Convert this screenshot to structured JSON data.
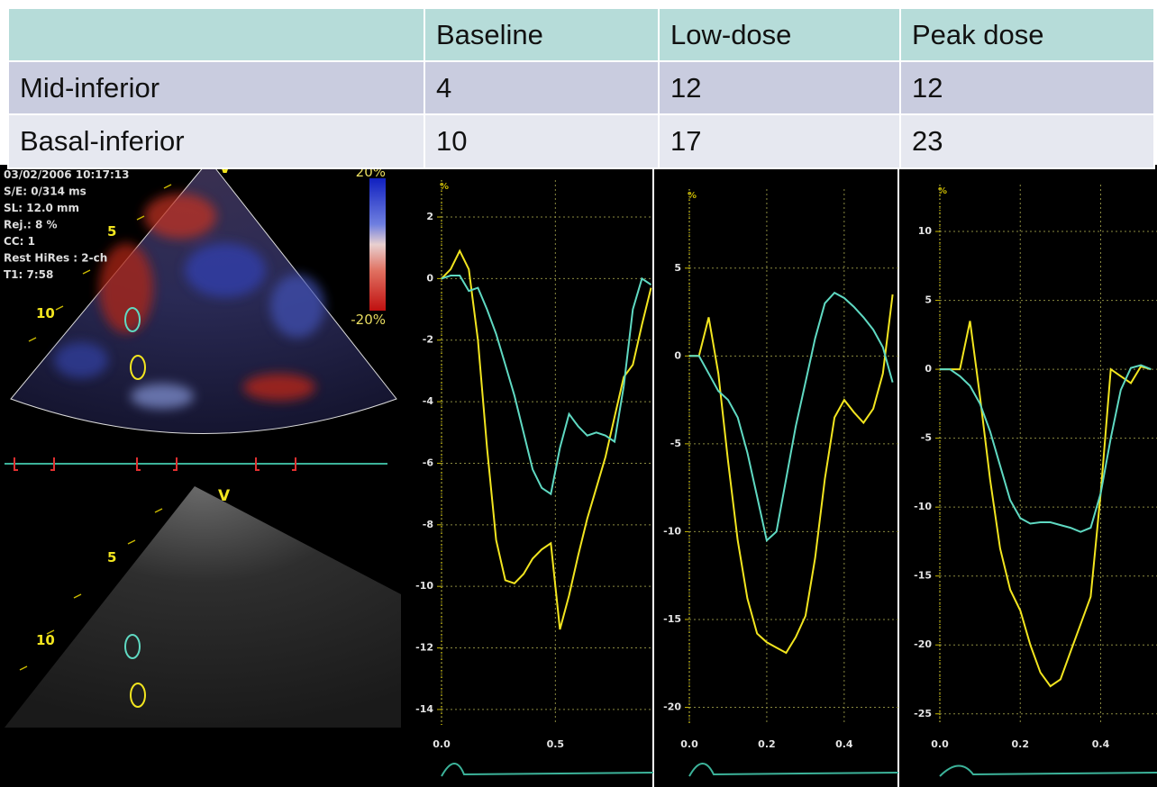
{
  "table": {
    "header": [
      "Baseline",
      "Low-dose",
      "Peak dose"
    ],
    "rows": [
      [
        "Mid-inferior",
        4,
        12,
        12
      ],
      [
        "Basal-inferior",
        10,
        17,
        23
      ]
    ]
  },
  "echo": {
    "info": [
      "03/02/2006 10:17:13",
      "S/E: 0/314 ms",
      "SL: 12.0 mm",
      "Rej.: 8 %",
      "CC: 1",
      "Rest HiRes : 2-ch",
      "T1: 7:58"
    ],
    "scale_top": "20%",
    "scale_bottom": "-20%",
    "top_view": {
      "marker": "V",
      "depth_labels": [
        "5",
        "10"
      ]
    },
    "bottom_view": {
      "marker": "V",
      "depth_labels": [
        "5",
        "10"
      ]
    }
  },
  "chart_data": [
    {
      "type": "line",
      "y_label": "%",
      "xlim": [
        0,
        0.93
      ],
      "ylim": [
        -14.5,
        3.2
      ],
      "xticks": [
        {
          "value": 0,
          "label": "0.0"
        },
        0.5
      ],
      "yticks": [
        2,
        0,
        -2,
        -4,
        -6,
        -8,
        -10,
        -12,
        -14
      ],
      "grid": true,
      "x": [
        0,
        0.04,
        0.08,
        0.12,
        0.16,
        0.2,
        0.24,
        0.28,
        0.32,
        0.36,
        0.4,
        0.44,
        0.48,
        0.52,
        0.56,
        0.6,
        0.64,
        0.68,
        0.72,
        0.76,
        0.8,
        0.84,
        0.88,
        0.92
      ],
      "series": [
        {
          "color": "#f2e51f",
          "values": [
            0,
            0.3,
            0.9,
            0.3,
            -2,
            -5.5,
            -8.5,
            -9.8,
            -9.9,
            -9.6,
            -9.1,
            -8.8,
            -8.6,
            -11.4,
            -10.3,
            -9,
            -7.8,
            -6.8,
            -5.8,
            -4.5,
            -3.2,
            -2.8,
            -1.5,
            -0.3
          ]
        },
        {
          "color": "#5fd9c2",
          "values": [
            0,
            0.1,
            0.1,
            -0.4,
            -0.3,
            -1,
            -1.8,
            -2.8,
            -3.8,
            -5,
            -6.2,
            -6.8,
            -7,
            -5.5,
            -4.4,
            -4.8,
            -5.1,
            -5,
            -5.1,
            -5.3,
            -3.5,
            -1,
            0,
            -0.2
          ]
        }
      ]
    },
    {
      "type": "line",
      "y_label": "%",
      "xlim": [
        0,
        0.54
      ],
      "ylim": [
        -21,
        9.5
      ],
      "xticks": [
        {
          "value": 0,
          "label": "0.0"
        },
        0.2,
        0.4
      ],
      "yticks": [
        5,
        0,
        -5,
        -10,
        -15,
        -20
      ],
      "grid": true,
      "x": [
        0,
        0.025,
        0.05,
        0.075,
        0.1,
        0.125,
        0.15,
        0.175,
        0.2,
        0.225,
        0.25,
        0.275,
        0.3,
        0.325,
        0.35,
        0.375,
        0.4,
        0.425,
        0.45,
        0.475,
        0.5,
        0.525
      ],
      "series": [
        {
          "color": "#f2e51f",
          "values": [
            0,
            0,
            2.2,
            -1,
            -6,
            -10.5,
            -13.8,
            -15.8,
            -16.3,
            -16.6,
            -16.9,
            -16,
            -14.8,
            -11.5,
            -7,
            -3.5,
            -2.5,
            -3.2,
            -3.8,
            -3,
            -1,
            3.5
          ]
        },
        {
          "color": "#5fd9c2",
          "values": [
            0,
            0,
            -1,
            -2,
            -2.5,
            -3.5,
            -5.5,
            -8,
            -10.5,
            -10,
            -7,
            -4,
            -1.5,
            1,
            3,
            3.6,
            3.3,
            2.8,
            2.2,
            1.5,
            0.5,
            -1.5
          ]
        }
      ]
    },
    {
      "type": "line",
      "y_label": "%",
      "xlim": [
        0,
        0.54
      ],
      "ylim": [
        -25.8,
        13.4
      ],
      "xticks": [
        {
          "value": 0,
          "label": "0.0"
        },
        0.2,
        0.4
      ],
      "yticks": [
        10,
        5,
        0,
        -5,
        -10,
        -15,
        -20,
        -25
      ],
      "grid": true,
      "x": [
        0,
        0.025,
        0.05,
        0.075,
        0.1,
        0.125,
        0.15,
        0.175,
        0.2,
        0.225,
        0.25,
        0.275,
        0.3,
        0.325,
        0.35,
        0.375,
        0.4,
        0.425,
        0.45,
        0.475,
        0.5,
        0.525
      ],
      "series": [
        {
          "color": "#f2e51f",
          "values": [
            0,
            0,
            0,
            3.5,
            -2,
            -8,
            -13,
            -16,
            -17.5,
            -20,
            -22,
            -23,
            -22.5,
            -20.5,
            -18.5,
            -16.5,
            -9,
            0,
            -0.5,
            -1,
            0.2,
            0
          ]
        },
        {
          "color": "#5fd9c2",
          "values": [
            0,
            0,
            -0.5,
            -1.2,
            -2.5,
            -4.5,
            -7,
            -9.5,
            -10.8,
            -11.2,
            -11.1,
            -11.1,
            -11.3,
            -11.5,
            -11.8,
            -11.5,
            -9,
            -5,
            -1.5,
            0.1,
            0.3,
            0
          ]
        }
      ]
    }
  ]
}
